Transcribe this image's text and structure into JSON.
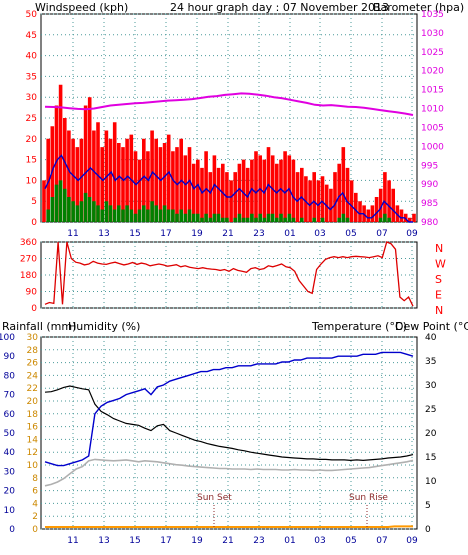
{
  "header": {
    "left_label": "Windspeed (kph)",
    "title": "24 hour graph day : 07 November 2013",
    "right_label": "Barometer (hpa)"
  },
  "colors": {
    "wind_gust": "#ff0000",
    "wind_avg": "#0000cc",
    "wind_low": "#008000",
    "barometer": "#e000e0",
    "direction": "#dd0000",
    "temperature": "#000000",
    "humidity": "#0000cc",
    "dewpoint": "#b0b0b0",
    "rainfall": "#ff9900",
    "axis_red": "#ff0000",
    "axis_magenta": "#e000e0",
    "axis_navy": "#000099",
    "axis_orange": "#cc8800"
  },
  "chart_data": [
    {
      "type": "line",
      "title": "24 hour graph day : 07 November 2013",
      "xlabel": "",
      "x_ticks": [
        "11",
        "13",
        "15",
        "17",
        "19",
        "21",
        "23",
        "01",
        "03",
        "05",
        "07",
        "09"
      ],
      "ylabel_left": "Windspeed (kph)",
      "ylim_left": [
        0,
        50
      ],
      "y_ticks_left": [
        "0",
        "5",
        "10",
        "15",
        "20",
        "25",
        "30",
        "35",
        "40",
        "45",
        "50"
      ],
      "ylabel_right": "Barometer (hpa)",
      "ylim_right": [
        980,
        1035
      ],
      "y_ticks_right": [
        "980",
        "985",
        "990",
        "995",
        "1000",
        "1005",
        "1010",
        "1015",
        "1020",
        "1025",
        "1030",
        "1035"
      ],
      "grid": true,
      "series": [
        {
          "name": "Windspeed gust",
          "axis": "left",
          "values": [
            10,
            20,
            23,
            28,
            33,
            25,
            22,
            20,
            18,
            20,
            28,
            30,
            22,
            24,
            18,
            22,
            20,
            24,
            19,
            18,
            20,
            21,
            17,
            15,
            20,
            17,
            22,
            20,
            18,
            19,
            21,
            17,
            18,
            20,
            16,
            18,
            14,
            15,
            13,
            17,
            12,
            16,
            13,
            14,
            12,
            10,
            12,
            14,
            15,
            13,
            15,
            17,
            16,
            15,
            18,
            16,
            14,
            15,
            17,
            16,
            15,
            12,
            13,
            11,
            10,
            12,
            10,
            11,
            9,
            8,
            12,
            14,
            18,
            13,
            10,
            7,
            5,
            4,
            3,
            4,
            6,
            8,
            12,
            10,
            8,
            4,
            3,
            2,
            1,
            2
          ]
        },
        {
          "name": "Windspeed average",
          "axis": "left",
          "values": [
            8,
            10,
            13,
            15,
            16,
            14,
            12,
            11,
            10,
            11,
            12,
            13,
            12,
            11,
            10,
            11,
            12,
            10,
            11,
            10,
            11,
            10,
            9,
            10,
            11,
            10,
            12,
            11,
            10,
            11,
            12,
            10,
            9,
            10,
            9,
            10,
            8,
            9,
            7,
            8,
            7,
            9,
            8,
            7,
            6,
            6,
            7,
            8,
            7,
            6,
            8,
            7,
            8,
            7,
            9,
            8,
            7,
            8,
            7,
            8,
            6,
            5,
            6,
            5,
            4,
            5,
            4,
            5,
            4,
            3,
            4,
            6,
            7,
            5,
            4,
            3,
            2,
            2,
            1,
            1,
            2,
            3,
            5,
            4,
            3,
            2,
            1,
            1,
            0,
            0
          ]
        },
        {
          "name": "Windspeed low",
          "axis": "left",
          "values": [
            0,
            3,
            6,
            9,
            10,
            8,
            6,
            5,
            4,
            5,
            7,
            6,
            5,
            4,
            3,
            5,
            4,
            3,
            4,
            3,
            4,
            3,
            2,
            3,
            4,
            3,
            5,
            4,
            3,
            4,
            3,
            3,
            2,
            3,
            2,
            3,
            2,
            2,
            1,
            2,
            1,
            2,
            2,
            1,
            1,
            0,
            1,
            2,
            1,
            1,
            2,
            1,
            2,
            1,
            2,
            2,
            1,
            2,
            1,
            2,
            1,
            0,
            1,
            0,
            0,
            1,
            0,
            1,
            0,
            0,
            0,
            1,
            2,
            1,
            0,
            0,
            0,
            0,
            0,
            0,
            0,
            1,
            2,
            1,
            0,
            0,
            0,
            0,
            0,
            0
          ]
        },
        {
          "name": "Barometer",
          "axis": "right",
          "values": [
            1010.5,
            1010.4,
            1010.3,
            1010.1,
            1009.9,
            1009.8,
            1010.0,
            1010.4,
            1010.8,
            1011.0,
            1011.2,
            1011.4,
            1011.5,
            1011.7,
            1011.9,
            1012.1,
            1012.2,
            1012.3,
            1012.5,
            1012.8,
            1013.1,
            1013.3,
            1013.6,
            1013.8,
            1014.0,
            1013.9,
            1013.7,
            1013.4,
            1013.0,
            1012.7,
            1012.3,
            1011.9,
            1011.5,
            1011.0,
            1010.8,
            1010.9,
            1010.7,
            1010.5,
            1010.4,
            1010.2,
            1009.9,
            1009.6,
            1009.3,
            1009.0,
            1008.7,
            1008.3
          ]
        }
      ]
    },
    {
      "type": "scatter",
      "title": "",
      "x_ticks": [
        "11",
        "13",
        "15",
        "17",
        "19",
        "21",
        "23",
        "01",
        "03",
        "05",
        "07",
        "09"
      ],
      "ylim": [
        0,
        360
      ],
      "y_ticks": [
        "0",
        "90",
        "180",
        "270",
        "360"
      ],
      "compass_labels": [
        "N",
        "W",
        "S",
        "E",
        "N"
      ],
      "grid": true,
      "series": [
        {
          "name": "Wind direction",
          "values": [
            20,
            30,
            25,
            360,
            20,
            360,
            270,
            250,
            245,
            235,
            240,
            255,
            245,
            240,
            238,
            245,
            250,
            242,
            235,
            240,
            248,
            238,
            245,
            240,
            230,
            235,
            240,
            235,
            228,
            232,
            236,
            225,
            230,
            222,
            218,
            215,
            220,
            215,
            212,
            210,
            205,
            210,
            200,
            215,
            205,
            200,
            195,
            215,
            220,
            210,
            215,
            230,
            225,
            232,
            240,
            225,
            220,
            200,
            150,
            120,
            90,
            80,
            210,
            240,
            265,
            275,
            280,
            275,
            280,
            275,
            280,
            282,
            280,
            278,
            275,
            280,
            285,
            275,
            360,
            350,
            320,
            60,
            40,
            60,
            10
          ]
        }
      ]
    },
    {
      "type": "line",
      "title": "",
      "x_ticks": [
        "11",
        "13",
        "15",
        "17",
        "19",
        "21",
        "23",
        "01",
        "03",
        "05",
        "07",
        "09"
      ],
      "ylabel_left": "Rainfall (mm)",
      "ylim_left_rain": [
        0,
        30
      ],
      "y_ticks_rain": [
        "0",
        "2",
        "4",
        "6",
        "8",
        "10",
        "12",
        "14",
        "16",
        "18",
        "20",
        "22",
        "24",
        "26",
        "28",
        "30"
      ],
      "ylabel_humidity": "Humidity (%)",
      "ylim_humidity": [
        0,
        100
      ],
      "y_ticks_humidity": [
        "0",
        "10",
        "20",
        "30",
        "40",
        "50",
        "60",
        "70",
        "80",
        "90",
        "100"
      ],
      "ylabel_right": "Temperature (°C)",
      "ylabel_right2": "Dew Point (°C)",
      "ylim_right": [
        0,
        40
      ],
      "y_ticks_right": [
        "0",
        "5",
        "10",
        "15",
        "20",
        "25",
        "30",
        "35",
        "40"
      ],
      "grid": true,
      "annotations": [
        "Sun Set",
        "Sun Rise"
      ],
      "series": [
        {
          "name": "Temperature",
          "axis": "right",
          "values": [
            28.5,
            28.6,
            29.0,
            29.5,
            29.8,
            29.5,
            29.2,
            29.0,
            26.0,
            24.5,
            23.8,
            23.0,
            22.5,
            22.0,
            21.8,
            21.6,
            21.0,
            20.5,
            21.5,
            21.8,
            20.5,
            20.0,
            19.5,
            19.0,
            18.5,
            18.2,
            17.8,
            17.5,
            17.2,
            17.0,
            16.8,
            16.5,
            16.3,
            16.0,
            15.8,
            15.6,
            15.4,
            15.2,
            15.0,
            14.9,
            14.8,
            14.7,
            14.6,
            14.6,
            14.5,
            14.5,
            14.4,
            14.4,
            14.4,
            14.3,
            14.4,
            14.3,
            14.4,
            14.5,
            14.6,
            14.8,
            14.9,
            15.0,
            15.2,
            15.5
          ]
        },
        {
          "name": "Humidity",
          "axis": "humidity",
          "values": [
            35,
            34,
            33,
            33,
            34,
            35,
            36,
            38,
            60,
            64,
            66,
            67,
            68,
            70,
            71,
            72,
            73,
            70,
            74,
            75,
            77,
            78,
            79,
            80,
            81,
            82,
            82,
            83,
            83,
            84,
            84,
            85,
            85,
            85,
            86,
            86,
            86,
            86,
            87,
            87,
            88,
            88,
            89,
            89,
            89,
            89,
            89,
            90,
            90,
            90,
            90,
            91,
            91,
            91,
            92,
            92,
            92,
            92,
            91,
            90
          ]
        },
        {
          "name": "Dew Point",
          "axis": "right",
          "values": [
            9.0,
            9.3,
            9.8,
            10.5,
            11.5,
            12.5,
            13.0,
            14.2,
            14.5,
            14.4,
            14.3,
            14.2,
            14.3,
            14.4,
            14.2,
            14.0,
            14.2,
            14.1,
            14.0,
            13.8,
            13.6,
            13.4,
            13.3,
            13.1,
            13.0,
            12.9,
            12.8,
            12.7,
            12.6,
            12.6,
            12.5,
            12.5,
            12.5,
            12.4,
            12.5,
            12.4,
            12.4,
            12.4,
            12.3,
            12.3,
            12.4,
            12.3,
            12.3,
            12.2,
            12.3,
            12.2,
            12.2,
            12.3,
            12.4,
            12.5,
            12.6,
            12.7,
            12.8,
            13.0,
            13.2,
            13.4,
            13.6,
            13.8,
            14.0,
            14.3
          ]
        },
        {
          "name": "Rainfall",
          "axis": "rain",
          "values": [
            0,
            0,
            0,
            0,
            0,
            0,
            0,
            0,
            0,
            0,
            0,
            0,
            0,
            0,
            0,
            0,
            0,
            0,
            0,
            0,
            0,
            0,
            0,
            0,
            0,
            0,
            0,
            0,
            0,
            0,
            0,
            0,
            0,
            0,
            0,
            0,
            0,
            0,
            0,
            0,
            0,
            0,
            0,
            0,
            0,
            0,
            0,
            0,
            0,
            0,
            0,
            0,
            0,
            0,
            0,
            0,
            0.1,
            0.1,
            0.1,
            0.1
          ]
        }
      ]
    }
  ],
  "bottom_header": {
    "rainfall_label": "Rainfall (mm)",
    "humidity_label": "Humidity (%)",
    "temperature_label": "Temperature (°C)",
    "dewpoint_label": "Dew Point (°C)"
  },
  "annotations": {
    "sunset": "Sun Set",
    "sunrise": "Sun Rise"
  }
}
